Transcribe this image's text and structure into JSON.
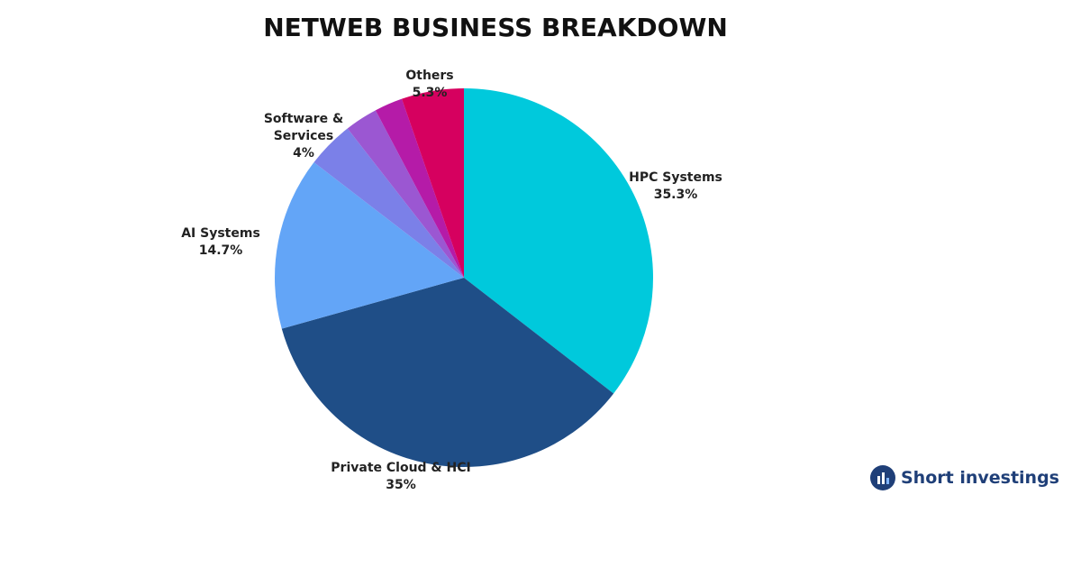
{
  "chart_data": {
    "type": "pie",
    "title": "NETWEB BUSINESS BREAKDOWN",
    "categories": [
      "HPC Systems",
      "Private Cloud & HCI",
      "AI Systems",
      "Software & Services",
      null,
      null,
      "Others"
    ],
    "values": [
      35.3,
      35,
      14.7,
      4,
      2.8,
      2.4,
      5.3
    ],
    "value_labels": [
      "35.3%",
      "35%",
      "14.7%",
      "4%",
      null,
      null,
      "5.3%"
    ],
    "colors": [
      "#00c9dc",
      "#1f4e87",
      "#63a5f7",
      "#7b80e8",
      "#9b57d2",
      "#b51ba8",
      "#d6005f"
    ]
  },
  "brand": "Short investings"
}
